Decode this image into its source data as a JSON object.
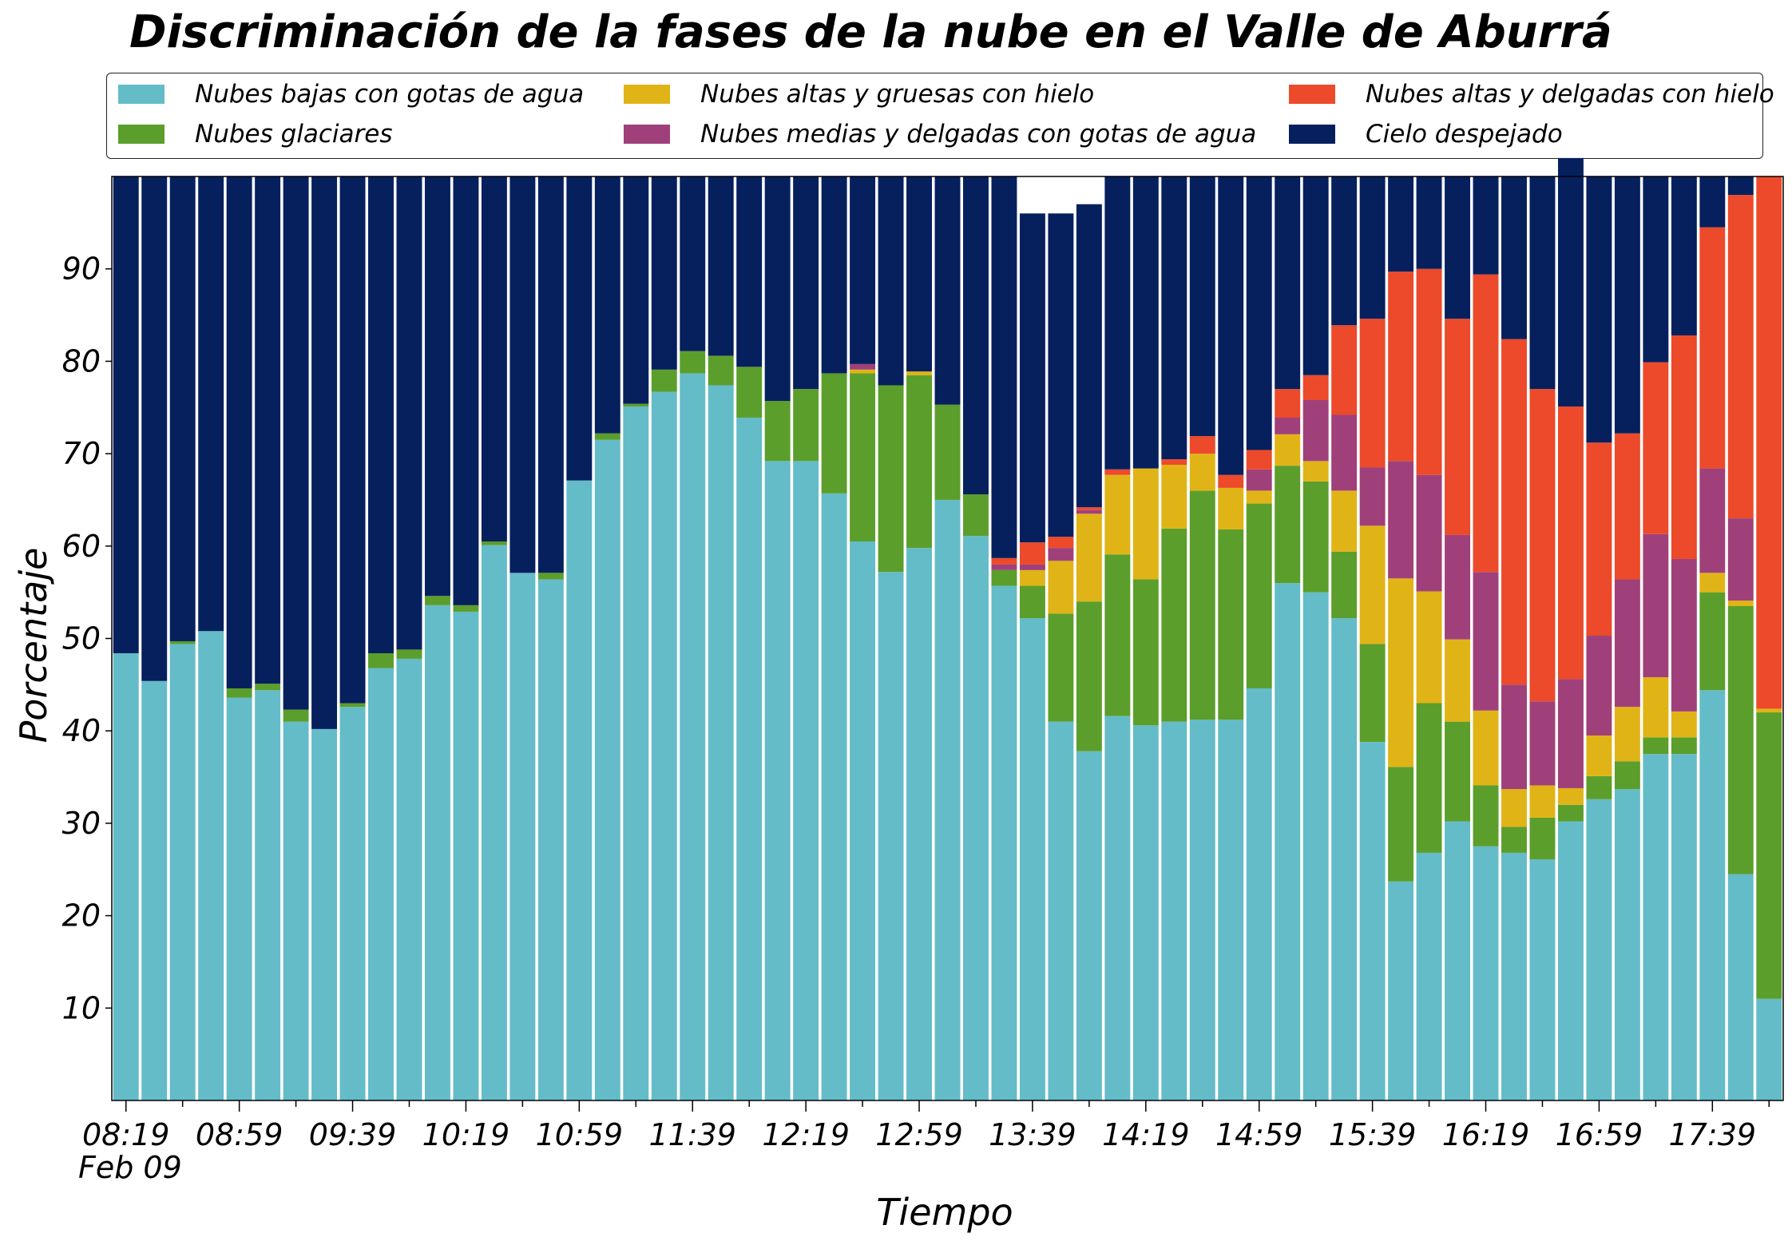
{
  "chart_data": {
    "type": "bar",
    "stacked": true,
    "title": "Discriminación de la fases de la nube en el Valle de Aburrá",
    "xlabel": "Tiempo",
    "ylabel": "Porcentaje",
    "x_date_label": "Feb 09",
    "ylim": [
      0,
      100
    ],
    "yticks": [
      10,
      20,
      30,
      40,
      50,
      60,
      70,
      80,
      90
    ],
    "xtick_labels": [
      "08:19",
      "08:59",
      "09:39",
      "10:19",
      "10:59",
      "11:39",
      "12:19",
      "12:59",
      "13:39",
      "14:19",
      "14:59",
      "15:39",
      "16:19",
      "16:59",
      "17:39"
    ],
    "legend_position": "top",
    "grid": false,
    "categories": [
      "08:19",
      "08:29",
      "08:39",
      "08:49",
      "08:59",
      "09:09",
      "09:19",
      "09:29",
      "09:39",
      "09:49",
      "09:59",
      "10:09",
      "10:19",
      "10:29",
      "10:39",
      "10:49",
      "10:59",
      "11:09",
      "11:19",
      "11:29",
      "11:39",
      "11:49",
      "11:59",
      "12:09",
      "12:19",
      "12:29",
      "12:39",
      "12:49",
      "12:59",
      "13:09",
      "13:19",
      "13:29",
      "13:39",
      "13:49",
      "13:59",
      "14:09",
      "14:19",
      "14:29",
      "14:39",
      "14:49",
      "14:59",
      "15:09",
      "15:19",
      "15:29",
      "15:39",
      "15:49",
      "15:59",
      "16:09",
      "16:19",
      "16:29",
      "16:39",
      "16:49",
      "16:59",
      "17:09",
      "17:19",
      "17:29",
      "17:39",
      "17:49",
      "17:59"
    ],
    "series": [
      {
        "name": "Nubes bajas con gotas de agua",
        "color": "#64bcc8",
        "values": [
          48.4,
          45.4,
          49.4,
          50.8,
          43.6,
          44.4,
          41,
          40.2,
          42.6,
          46.8,
          47.8,
          53.6,
          52.9,
          60.1,
          57.1,
          56.4,
          67.1,
          71.5,
          75.1,
          76.7,
          78.7,
          77.4,
          73.9,
          69.2,
          69.2,
          65.7,
          60.5,
          57.2,
          59.8,
          65,
          61.1,
          55.7,
          52.2,
          41,
          37.8,
          41.6,
          40.6,
          41,
          41.2,
          41.2,
          44.6,
          56,
          55,
          52.2,
          38.8,
          23.7,
          26.8,
          30.2,
          27.5,
          26.8,
          26.1,
          30.2,
          32.6,
          33.7,
          37.5,
          37.5,
          44.4,
          24.5,
          11
        ]
      },
      {
        "name": "Nubes glaciares",
        "color": "#5c9e2b",
        "values": [
          0,
          0,
          0.3,
          0,
          1,
          0.7,
          1.3,
          0,
          0.4,
          1.6,
          1,
          1,
          0.7,
          0.4,
          0,
          0.7,
          0,
          0.7,
          0.3,
          2.4,
          2.4,
          3.2,
          5.5,
          6.5,
          7.8,
          13,
          18.2,
          20.2,
          18.7,
          10.3,
          4.5,
          1.7,
          3.5,
          11.7,
          16.2,
          17.5,
          15.8,
          20.9,
          24.8,
          20.6,
          20,
          12.7,
          12,
          7.2,
          10.6,
          12.4,
          16.2,
          10.8,
          6.6,
          2.8,
          4.5,
          1.8,
          2.5,
          3,
          1.8,
          1.8,
          10.6,
          29,
          31
        ]
      },
      {
        "name": "Nubes altas y gruesas con hielo",
        "color": "#e0b416",
        "values": [
          0,
          0,
          0,
          0,
          0,
          0,
          0,
          0,
          0,
          0,
          0,
          0,
          0,
          0,
          0,
          0,
          0,
          0,
          0,
          0,
          0,
          0,
          0,
          0,
          0,
          0,
          0.4,
          0,
          0.4,
          0,
          0,
          0,
          1.7,
          5.7,
          9.5,
          8.6,
          12,
          6.9,
          4,
          4.5,
          1.4,
          3.4,
          2.2,
          6.6,
          12.8,
          20.4,
          12.1,
          8.9,
          8.1,
          4.1,
          3.5,
          1.8,
          4.4,
          5.9,
          6.5,
          2.8,
          2.1,
          0.6,
          0.4
        ]
      },
      {
        "name": "Nubes medias y delgadas con gotas de agua",
        "color": "#a0407a",
        "values": [
          0,
          0,
          0,
          0,
          0,
          0,
          0,
          0,
          0,
          0,
          0,
          0,
          0,
          0,
          0,
          0,
          0,
          0,
          0,
          0,
          0,
          0,
          0,
          0,
          0,
          0,
          0.6,
          0,
          0,
          0,
          0,
          0.6,
          0.6,
          1.4,
          0.4,
          0,
          0,
          0,
          0,
          0,
          2.3,
          1.8,
          6.6,
          8.2,
          6.3,
          12.7,
          12.6,
          11.3,
          15,
          11.3,
          9.1,
          11.8,
          10.8,
          13.8,
          15.5,
          16.5,
          11.3,
          8.9,
          0
        ]
      },
      {
        "name": "Nubes altas y delgadas con hielo",
        "color": "#ec4a2a",
        "values": [
          0,
          0,
          0,
          0,
          0,
          0,
          0,
          0,
          0,
          0,
          0,
          0,
          0,
          0,
          0,
          0,
          0,
          0,
          0,
          0,
          0,
          0,
          0,
          0,
          0,
          0,
          0,
          0,
          0,
          0,
          0,
          0.7,
          2.4,
          1.2,
          0.3,
          0.6,
          0,
          0.6,
          1.9,
          1.4,
          2.1,
          3.1,
          2.7,
          9.7,
          16.1,
          20.5,
          22.3,
          23.4,
          32.2,
          37.4,
          33.8,
          29.5,
          20.9,
          15.8,
          18.6,
          24.2,
          26.1,
          35,
          57.6
        ]
      },
      {
        "name": "Cielo despejado",
        "color": "#06205e",
        "values": [
          51.6,
          54.6,
          50.3,
          49.2,
          55.4,
          54.9,
          57.7,
          59.8,
          57,
          51.6,
          51.2,
          45.4,
          46.4,
          39.5,
          42.9,
          42.9,
          32.9,
          27.8,
          24.6,
          20.9,
          18.9,
          19.4,
          20.6,
          24.3,
          23,
          21.3,
          20.3,
          22.6,
          21.1,
          24.7,
          34.4,
          41.3,
          35.6,
          35,
          32.8,
          31.7,
          31.6,
          30.6,
          28.1,
          32.3,
          29.6,
          23,
          21.5,
          16.1,
          15.4,
          10.3,
          10,
          15.4,
          10.6,
          17.6,
          23,
          26.9,
          28.8,
          27.8,
          20.1,
          17.2,
          5.5,
          2,
          0
        ]
      }
    ]
  }
}
